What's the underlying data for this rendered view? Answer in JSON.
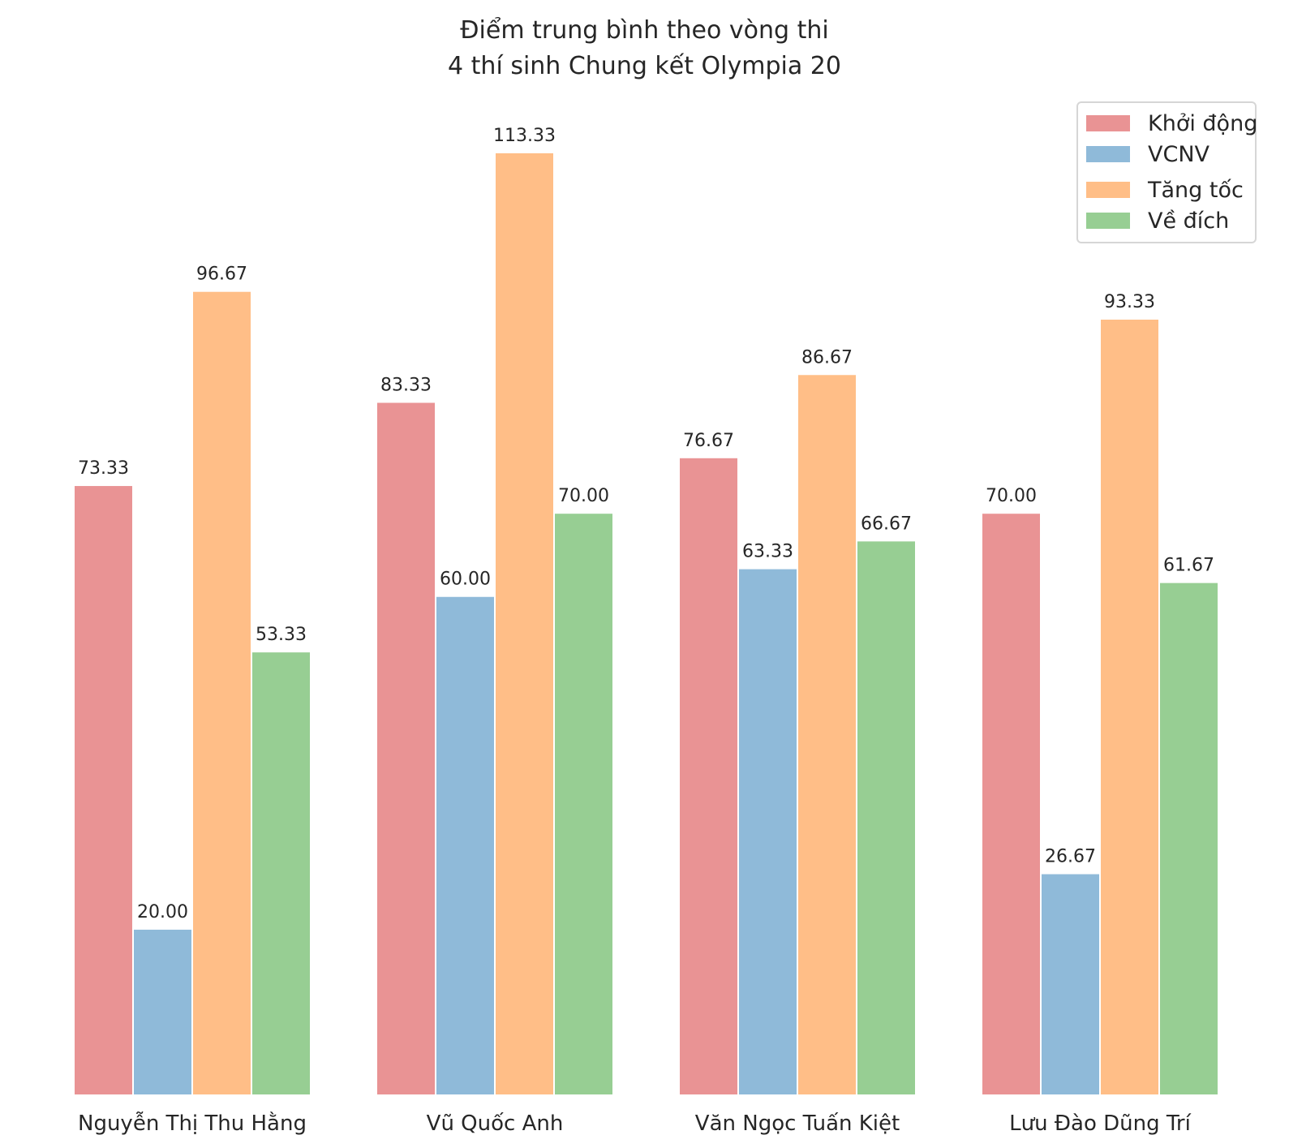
{
  "chart_data": {
    "type": "bar",
    "title": "Điểm trung bình theo vòng thi",
    "subtitle": "4 thí sinh Chung kết Olympia 20",
    "categories": [
      "Nguyễn Thị Thu Hằng",
      "Vũ Quốc Anh",
      "Văn Ngọc Tuấn Kiệt",
      "Lưu Đào Dũng Trí"
    ],
    "series": [
      {
        "name": "Khởi động",
        "color": "#e99394",
        "values": [
          73.33,
          83.33,
          76.67,
          70.0
        ]
      },
      {
        "name": "VCNV",
        "color": "#8fbad9",
        "values": [
          20.0,
          60.0,
          63.33,
          26.67
        ]
      },
      {
        "name": "Tăng tốc",
        "color": "#ffbe87",
        "values": [
          96.67,
          113.33,
          86.67,
          93.33
        ]
      },
      {
        "name": "Về đích",
        "color": "#97ce93",
        "values": [
          53.33,
          70.0,
          66.67,
          61.67
        ]
      }
    ],
    "data_label_format": "2 decimals",
    "ylim": [
      0,
      118
    ],
    "grid": false,
    "legend": "top-right",
    "xlabel": "",
    "ylabel": ""
  }
}
